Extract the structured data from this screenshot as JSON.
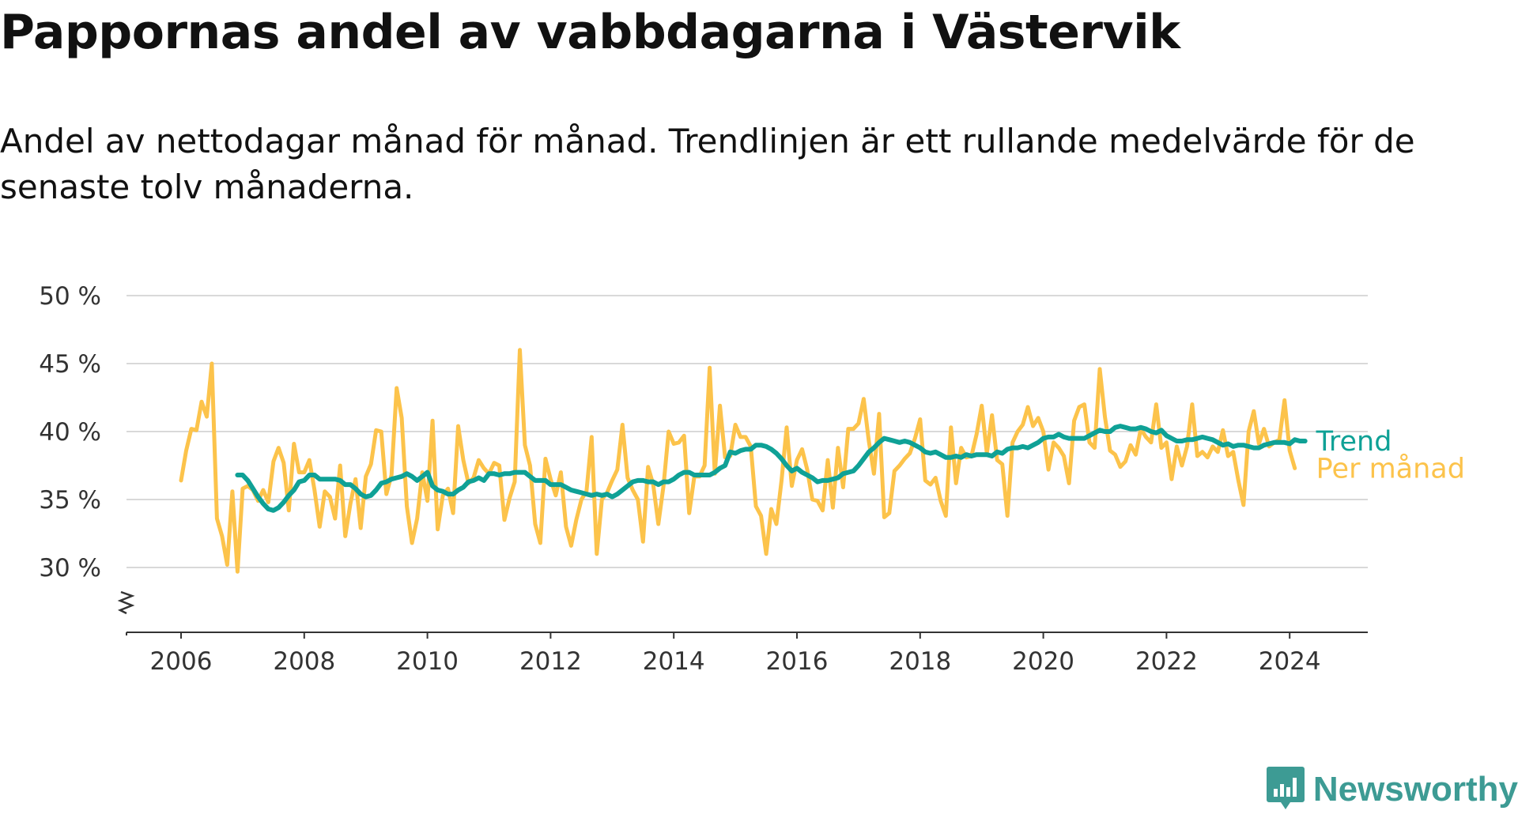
{
  "title": "Pappornas andel av vabbdagarna i Västervik",
  "subtitle": "Andel av nettodagar månad för månad. Trendlinjen är ett rullande medelvärde för de senaste tolv månaderna.",
  "brand": {
    "name": "Newsworthy",
    "icon": "newsworthy-logo-icon"
  },
  "colors": {
    "monthly": "#fcc34b",
    "trend": "#0fa196",
    "grid": "#d9d9d9",
    "axis": "#333333"
  },
  "chart_data": {
    "type": "line",
    "title": "Pappornas andel av vabbdagarna i Västervik",
    "xlabel": "",
    "ylabel": "",
    "xlim": [
      2005.5,
      2025.2
    ],
    "ylim": [
      25,
      50
    ],
    "x_ticks": [
      {
        "value": 2006,
        "label": "2006"
      },
      {
        "value": 2008,
        "label": "2008"
      },
      {
        "value": 2010,
        "label": "2010"
      },
      {
        "value": 2012,
        "label": "2012"
      },
      {
        "value": 2014,
        "label": "2014"
      },
      {
        "value": 2016,
        "label": "2016"
      },
      {
        "value": 2018,
        "label": "2018"
      },
      {
        "value": 2020,
        "label": "2020"
      },
      {
        "value": 2022,
        "label": "2022"
      },
      {
        "value": 2024,
        "label": "2024"
      }
    ],
    "y_ticks": [
      {
        "value": 30,
        "label": "30 %"
      },
      {
        "value": 35,
        "label": "35 %"
      },
      {
        "value": 40,
        "label": "40 %"
      },
      {
        "value": 45,
        "label": "45 %"
      },
      {
        "value": 50,
        "label": "50 %"
      }
    ],
    "grid": true,
    "axis_break": true,
    "legend": "direct labels at line ends",
    "series": [
      {
        "name": "Per månad",
        "color": "#fcc34b",
        "start": 2006.0,
        "step_months": 1,
        "values": [
          36.4,
          38.6,
          40.2,
          40.1,
          42.2,
          41.1,
          45.0,
          33.6,
          32.3,
          30.2,
          35.6,
          29.7,
          35.8,
          36.0,
          35.7,
          34.9,
          35.7,
          34.8,
          37.8,
          38.8,
          37.7,
          34.2,
          39.1,
          37.0,
          37.0,
          37.9,
          35.7,
          33.0,
          35.6,
          35.2,
          33.6,
          37.5,
          32.3,
          34.7,
          36.5,
          32.9,
          36.7,
          37.6,
          40.1,
          40.0,
          35.4,
          36.8,
          43.2,
          41.0,
          34.5,
          31.8,
          33.6,
          37.0,
          34.9,
          40.8,
          32.8,
          35.3,
          35.8,
          34.0,
          40.4,
          37.9,
          36.2,
          36.6,
          37.9,
          37.3,
          36.9,
          37.7,
          37.5,
          33.5,
          35.1,
          36.3,
          46.0,
          39.0,
          37.5,
          33.2,
          31.8,
          38.0,
          36.5,
          35.3,
          37.0,
          33.0,
          31.6,
          33.5,
          35.0,
          35.6,
          39.6,
          31.0,
          35.0,
          35.5,
          36.4,
          37.2,
          40.5,
          36.6,
          35.7,
          35.0,
          31.9,
          37.4,
          36.1,
          33.2,
          36.0,
          40.0,
          39.1,
          39.2,
          39.7,
          34.0,
          36.7,
          36.7,
          37.5,
          44.7,
          36.9,
          41.9,
          38.1,
          38.2,
          40.5,
          39.6,
          39.6,
          38.9,
          34.5,
          33.8,
          31.0,
          34.3,
          33.2,
          36.4,
          40.3,
          36.0,
          37.9,
          38.7,
          37.2,
          35.0,
          34.9,
          34.2,
          37.9,
          34.4,
          38.8,
          35.9,
          40.2,
          40.2,
          40.6,
          42.4,
          39.3,
          36.9,
          41.3,
          33.7,
          34.0,
          37.1,
          37.5,
          38.0,
          38.4,
          39.5,
          40.9,
          36.4,
          36.1,
          36.6,
          34.9,
          33.8,
          40.3,
          36.2,
          38.8,
          38.1,
          38.2,
          39.8,
          41.9,
          38.4,
          41.2,
          37.9,
          37.6,
          33.8,
          39.2,
          40.0,
          40.5,
          41.8,
          40.4,
          41.0,
          40.0,
          37.2,
          39.2,
          38.8,
          38.2,
          36.2,
          40.8,
          41.8,
          42.0,
          39.2,
          38.8,
          44.6,
          41.1,
          38.6,
          38.3,
          37.4,
          37.8,
          39.0,
          38.3,
          40.2,
          39.6,
          39.2,
          42.0,
          38.8,
          39.2,
          36.5,
          38.9,
          37.5,
          38.9,
          42.0,
          38.2,
          38.5,
          38.1,
          38.9,
          38.5,
          40.1,
          38.2,
          38.5,
          36.4,
          34.6,
          40.0,
          41.5,
          39.1,
          40.2,
          38.9,
          39.2,
          39.4,
          42.3,
          38.6,
          37.3
        ]
      },
      {
        "name": "Trend",
        "color": "#0fa196",
        "start": 2006.9167,
        "step_months": 1,
        "values": [
          36.8,
          36.8,
          36.4,
          35.8,
          35.2,
          34.7,
          34.3,
          34.2,
          34.4,
          34.8,
          35.3,
          35.7,
          36.3,
          36.4,
          36.8,
          36.8,
          36.5,
          36.5,
          36.5,
          36.5,
          36.4,
          36.1,
          36.1,
          35.8,
          35.4,
          35.2,
          35.3,
          35.7,
          36.2,
          36.3,
          36.5,
          36.6,
          36.7,
          36.9,
          36.7,
          36.4,
          36.7,
          37.0,
          36.0,
          35.7,
          35.6,
          35.4,
          35.4,
          35.7,
          35.9,
          36.3,
          36.4,
          36.6,
          36.4,
          36.9,
          36.9,
          36.8,
          36.9,
          36.9,
          37.0,
          37.0,
          37.0,
          36.7,
          36.4,
          36.4,
          36.4,
          36.1,
          36.1,
          36.1,
          35.9,
          35.7,
          35.6,
          35.5,
          35.4,
          35.3,
          35.4,
          35.3,
          35.4,
          35.2,
          35.4,
          35.7,
          36.0,
          36.3,
          36.4,
          36.4,
          36.3,
          36.3,
          36.1,
          36.3,
          36.3,
          36.5,
          36.8,
          37.0,
          37.0,
          36.8,
          36.8,
          36.8,
          36.8,
          37.0,
          37.3,
          37.5,
          38.5,
          38.4,
          38.6,
          38.7,
          38.7,
          39.0,
          39.0,
          38.9,
          38.7,
          38.4,
          38.0,
          37.5,
          37.1,
          37.3,
          37.0,
          36.8,
          36.6,
          36.3,
          36.4,
          36.4,
          36.5,
          36.6,
          36.9,
          37.0,
          37.1,
          37.5,
          38.0,
          38.5,
          38.8,
          39.2,
          39.5,
          39.4,
          39.3,
          39.2,
          39.3,
          39.2,
          39.0,
          38.8,
          38.5,
          38.4,
          38.5,
          38.3,
          38.1,
          38.1,
          38.2,
          38.1,
          38.3,
          38.2,
          38.3,
          38.3,
          38.3,
          38.2,
          38.5,
          38.4,
          38.7,
          38.8,
          38.8,
          38.9,
          38.8,
          39.0,
          39.2,
          39.5,
          39.6,
          39.6,
          39.8,
          39.6,
          39.5,
          39.5,
          39.5,
          39.5,
          39.7,
          39.9,
          40.1,
          40.0,
          40.0,
          40.3,
          40.4,
          40.3,
          40.2,
          40.2,
          40.3,
          40.2,
          40.0,
          39.9,
          40.1,
          39.7,
          39.5,
          39.3,
          39.3,
          39.4,
          39.4,
          39.5,
          39.6,
          39.5,
          39.4,
          39.2,
          39.0,
          39.1,
          38.9,
          39.0,
          39.0,
          38.9,
          38.8,
          38.8,
          39.0,
          39.1,
          39.2,
          39.2,
          39.2,
          39.1,
          39.4,
          39.3,
          39.3
        ]
      }
    ]
  }
}
